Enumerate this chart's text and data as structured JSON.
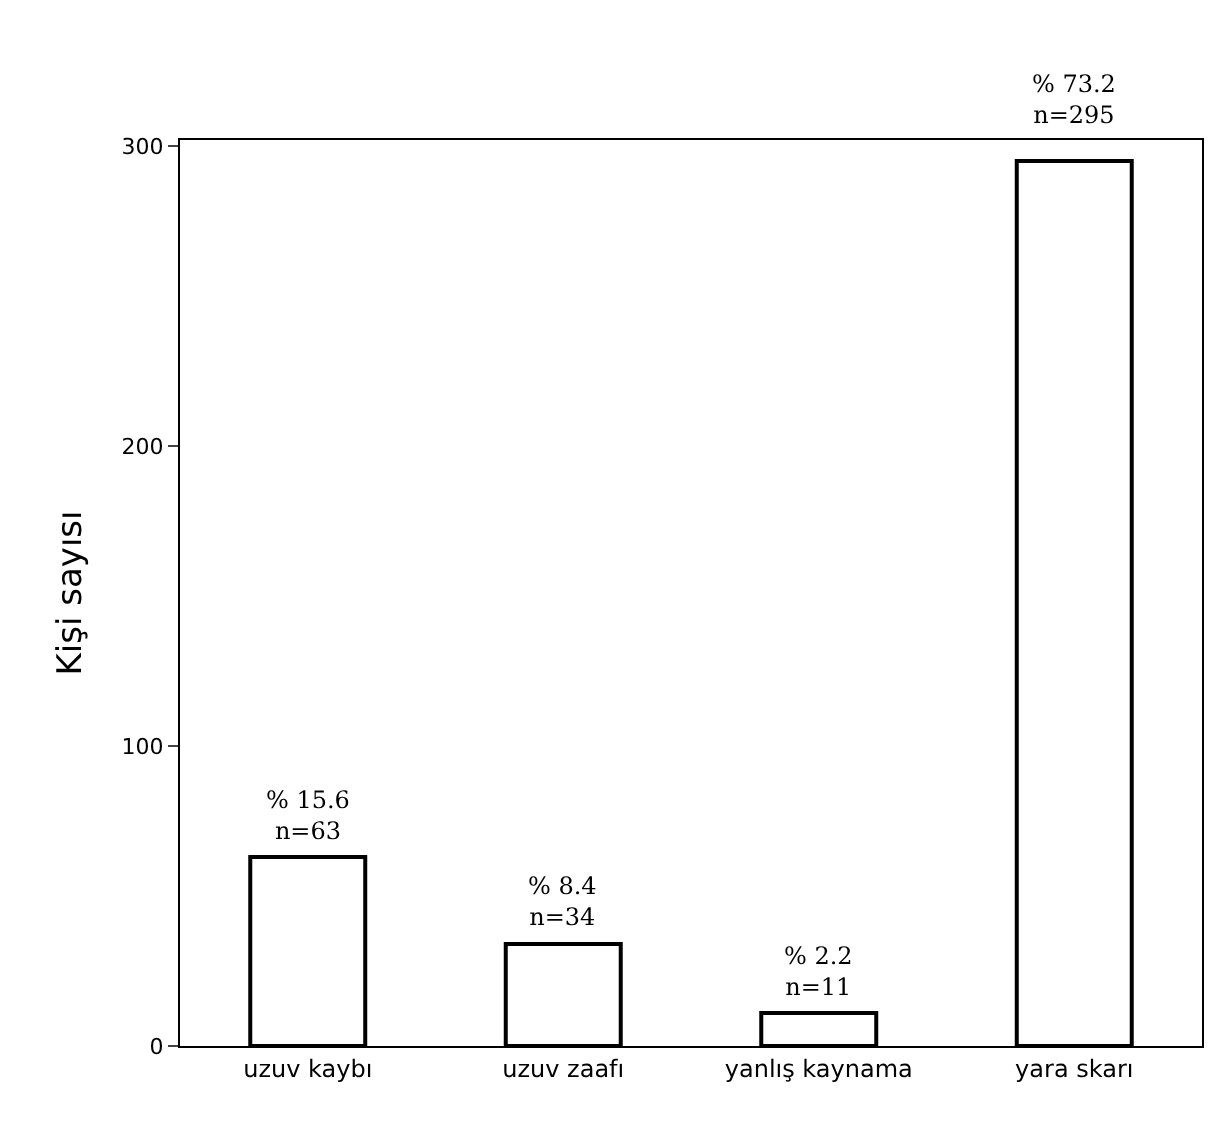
{
  "chart_data": {
    "type": "bar",
    "ylabel": "Kişi sayısı",
    "categories": [
      "uzuv kaybı",
      "uzuv zaafı",
      "yanlış kaynama",
      "yara skarı"
    ],
    "values": [
      63,
      34,
      11,
      295
    ],
    "value_labels": [
      "% 15.6\nn=63",
      "% 8.4\nn=34",
      "% 2.2\nn=11",
      "% 73.2\nn=295"
    ],
    "color": "#ffffff",
    "ylim": [
      0,
      302
    ],
    "yticks": [
      0,
      100,
      200,
      300
    ]
  }
}
